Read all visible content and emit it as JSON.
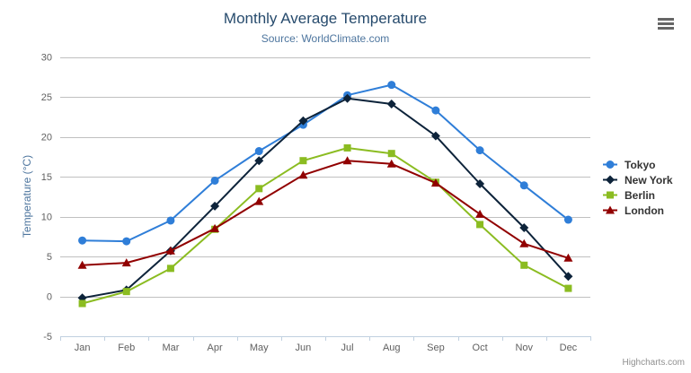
{
  "header": {
    "title": "Monthly Average Temperature",
    "subtitle": "Source: WorldClimate.com"
  },
  "credit": {
    "label": "Highcharts.com"
  },
  "chart_data": {
    "type": "line",
    "title": "Monthly Average Temperature",
    "subtitle": "Source: WorldClimate.com",
    "categories": [
      "Jan",
      "Feb",
      "Mar",
      "Apr",
      "May",
      "Jun",
      "Jul",
      "Aug",
      "Sep",
      "Oct",
      "Nov",
      "Dec"
    ],
    "xlabel": "",
    "ylabel": "Temperature (°C)",
    "ylim": [
      -5,
      30
    ],
    "yticks": [
      -5,
      0,
      5,
      10,
      15,
      20,
      25,
      30
    ],
    "grid": true,
    "legend_position": "right",
    "series": [
      {
        "name": "Tokyo",
        "color": "#2f7ed8",
        "marker": "circle",
        "values": [
          7.0,
          6.9,
          9.5,
          14.5,
          18.2,
          21.5,
          25.2,
          26.5,
          23.3,
          18.3,
          13.9,
          9.6
        ]
      },
      {
        "name": "New York",
        "color": "#0d233a",
        "marker": "diamond",
        "values": [
          -0.2,
          0.8,
          5.7,
          11.3,
          17.0,
          22.0,
          24.8,
          24.1,
          20.1,
          14.1,
          8.6,
          2.5
        ]
      },
      {
        "name": "Berlin",
        "color": "#8bbc21",
        "marker": "square",
        "values": [
          -0.9,
          0.6,
          3.5,
          8.4,
          13.5,
          17.0,
          18.6,
          17.9,
          14.3,
          9.0,
          3.9,
          1.0
        ]
      },
      {
        "name": "London",
        "color": "#910000",
        "marker": "triangle",
        "values": [
          3.9,
          4.2,
          5.7,
          8.5,
          11.9,
          15.2,
          17.0,
          16.6,
          14.2,
          10.3,
          6.6,
          4.8
        ]
      }
    ]
  },
  "styles": {
    "title_color": "#274b6d",
    "subtitle_color": "#4d759e",
    "axis_title_color": "#4d759e",
    "tick_label_color": "#606060",
    "grid_color": "#c0c0c0",
    "axis_line_color": "#c0d0e0",
    "legend_text_color": "#333333",
    "credit_color": "#909090",
    "export_icon_color": "#666666",
    "background": "#ffffff"
  }
}
